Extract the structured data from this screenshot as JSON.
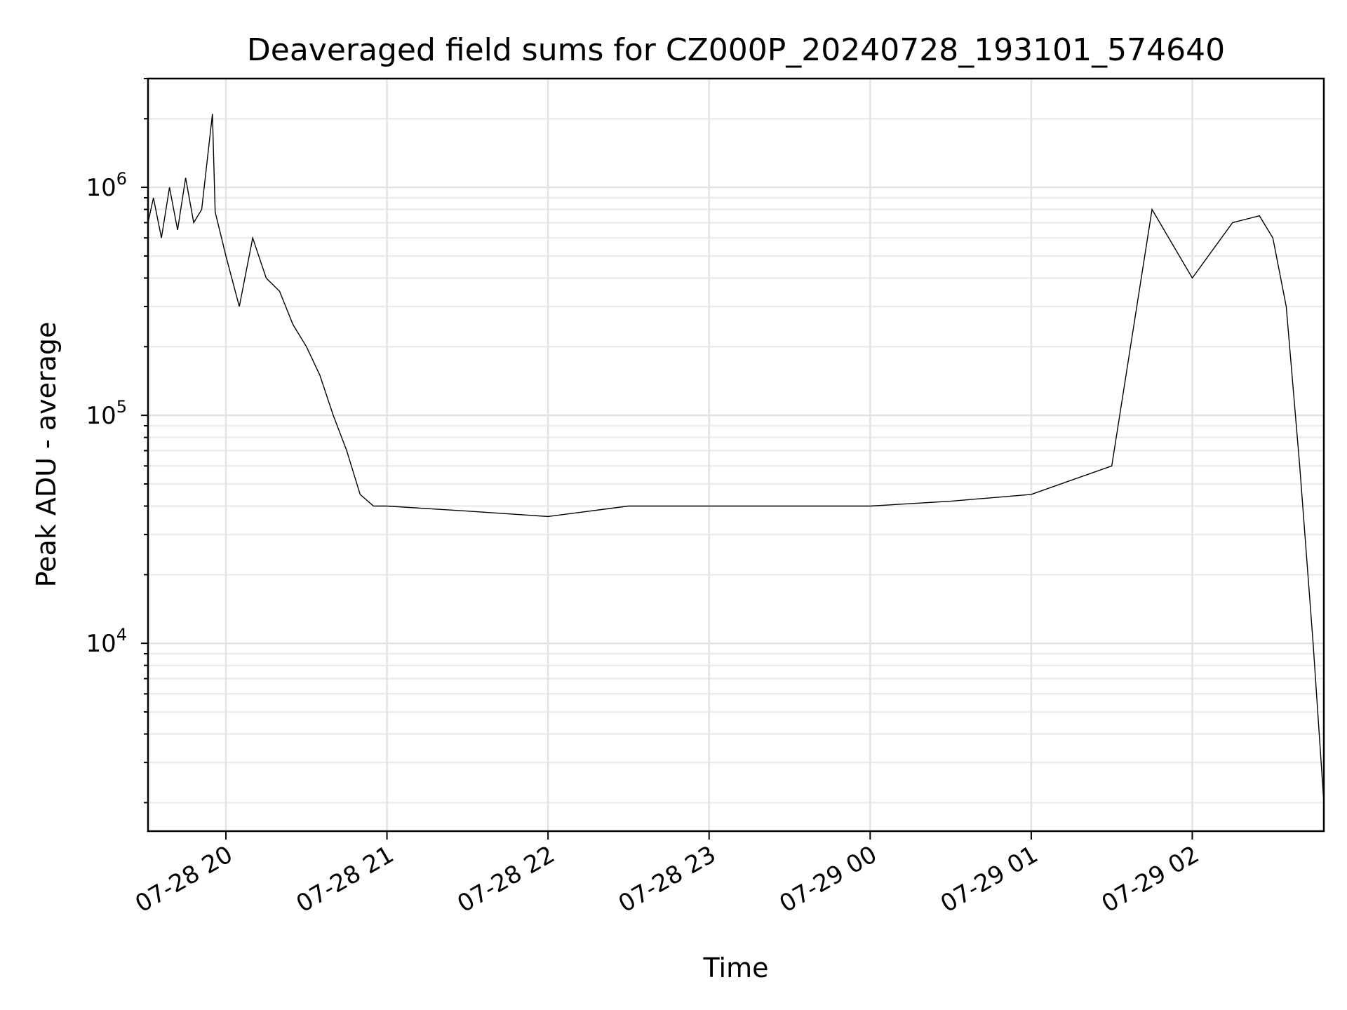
{
  "chart_data": {
    "type": "line",
    "title": "Deaveraged field sums for CZ000P_20240728_193101_574640",
    "xlabel": "Time",
    "ylabel": "Peak ADU - average",
    "yscale": "log",
    "grid": "both (major and minor)",
    "x_range": [
      "2024-07-28T19:31:00",
      "2024-07-29T02:49:00"
    ],
    "y_range": [
      1500,
      3000000
    ],
    "x_ticks": [
      {
        "value": "2024-07-28T20:00:00",
        "label": "07-28 20"
      },
      {
        "value": "2024-07-28T21:00:00",
        "label": "07-28 21"
      },
      {
        "value": "2024-07-28T22:00:00",
        "label": "07-28 22"
      },
      {
        "value": "2024-07-28T23:00:00",
        "label": "07-28 23"
      },
      {
        "value": "2024-07-29T00:00:00",
        "label": "07-29 00"
      },
      {
        "value": "2024-07-29T01:00:00",
        "label": "07-29 01"
      },
      {
        "value": "2024-07-29T02:00:00",
        "label": "07-29 02"
      }
    ],
    "y_ticks": [
      {
        "value": 10000,
        "base": "10",
        "exp": "4"
      },
      {
        "value": 100000,
        "base": "10",
        "exp": "5"
      },
      {
        "value": 1000000,
        "base": "10",
        "exp": "6"
      }
    ],
    "series": [
      {
        "color": "#000000",
        "description_note": "noisy time series; envelope approximated",
        "points": [
          [
            "2024-07-28T19:31:00",
            700000
          ],
          [
            "2024-07-28T19:33:00",
            900000
          ],
          [
            "2024-07-28T19:36:00",
            600000
          ],
          [
            "2024-07-28T19:39:00",
            1000000
          ],
          [
            "2024-07-28T19:42:00",
            650000
          ],
          [
            "2024-07-28T19:45:00",
            1100000
          ],
          [
            "2024-07-28T19:48:00",
            700000
          ],
          [
            "2024-07-28T19:51:00",
            800000
          ],
          [
            "2024-07-28T19:55:00",
            2100000
          ],
          [
            "2024-07-28T19:56:00",
            780000
          ],
          [
            "2024-07-28T20:00:00",
            500000
          ],
          [
            "2024-07-28T20:05:00",
            300000
          ],
          [
            "2024-07-28T20:10:00",
            600000
          ],
          [
            "2024-07-28T20:15:00",
            400000
          ],
          [
            "2024-07-28T20:20:00",
            350000
          ],
          [
            "2024-07-28T20:25:00",
            250000
          ],
          [
            "2024-07-28T20:30:00",
            200000
          ],
          [
            "2024-07-28T20:35:00",
            150000
          ],
          [
            "2024-07-28T20:40:00",
            100000
          ],
          [
            "2024-07-28T20:45:00",
            70000
          ],
          [
            "2024-07-28T20:50:00",
            45000
          ],
          [
            "2024-07-28T20:55:00",
            40000
          ],
          [
            "2024-07-28T21:00:00",
            40000
          ],
          [
            "2024-07-28T21:30:00",
            38000
          ],
          [
            "2024-07-28T22:00:00",
            36000
          ],
          [
            "2024-07-28T22:30:00",
            40000
          ],
          [
            "2024-07-28T23:00:00",
            40000
          ],
          [
            "2024-07-28T23:30:00",
            40000
          ],
          [
            "2024-07-29T00:00:00",
            40000
          ],
          [
            "2024-07-29T00:30:00",
            42000
          ],
          [
            "2024-07-29T01:00:00",
            45000
          ],
          [
            "2024-07-29T01:30:00",
            60000
          ],
          [
            "2024-07-29T01:45:00",
            800000
          ],
          [
            "2024-07-29T02:00:00",
            400000
          ],
          [
            "2024-07-29T02:15:00",
            700000
          ],
          [
            "2024-07-29T02:25:00",
            750000
          ],
          [
            "2024-07-29T02:30:00",
            600000
          ],
          [
            "2024-07-29T02:35:00",
            300000
          ],
          [
            "2024-07-29T02:40:00",
            60000
          ],
          [
            "2024-07-29T02:45:00",
            10000
          ],
          [
            "2024-07-29T02:49:00",
            2000
          ]
        ]
      }
    ]
  }
}
